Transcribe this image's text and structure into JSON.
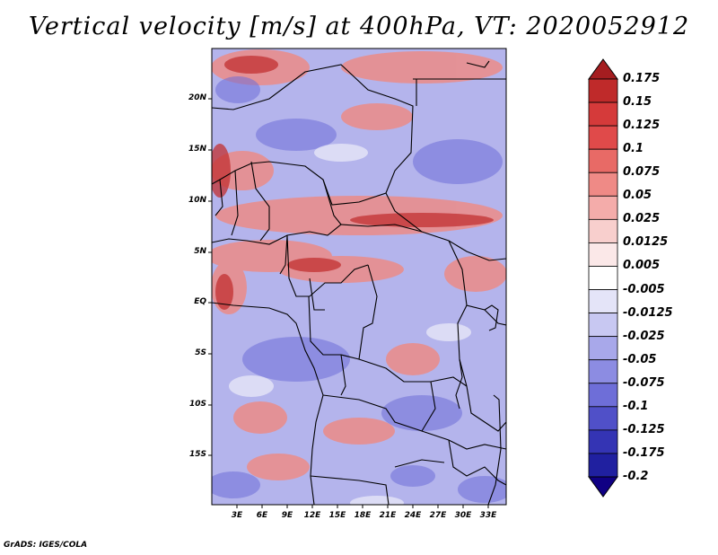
{
  "title": "Vertical velocity [m/s] at 400hPa, VT: 2020052912",
  "credit": "GrADS: IGES/COLA",
  "map": {
    "lat_labels": [
      "20N",
      "15N",
      "10N",
      "5N",
      "EQ",
      "5S",
      "10S",
      "15S"
    ],
    "lon_labels": [
      "3E",
      "6E",
      "9E",
      "12E",
      "15E",
      "18E",
      "21E",
      "24E",
      "27E",
      "30E",
      "33E"
    ]
  },
  "colorbar": {
    "labels": [
      "0.175",
      "0.15",
      "0.125",
      "0.1",
      "0.075",
      "0.05",
      "0.025",
      "0.0125",
      "0.005",
      "-0.005",
      "-0.0125",
      "-0.025",
      "-0.05",
      "-0.075",
      "-0.1",
      "-0.125",
      "-0.175",
      "-0.2"
    ],
    "colors": [
      "#a51d20",
      "#bf2a2a",
      "#d53a3a",
      "#e04a4a",
      "#e86a66",
      "#ef8a86",
      "#f4acaa",
      "#f8cfcd",
      "#fbe8e8",
      "#ffffff",
      "#e4e4f8",
      "#c8c8f2",
      "#a8a8ea",
      "#8c8ce2",
      "#6e6ed8",
      "#5050c8",
      "#3434b4",
      "#2020a0",
      "#100084"
    ]
  }
}
